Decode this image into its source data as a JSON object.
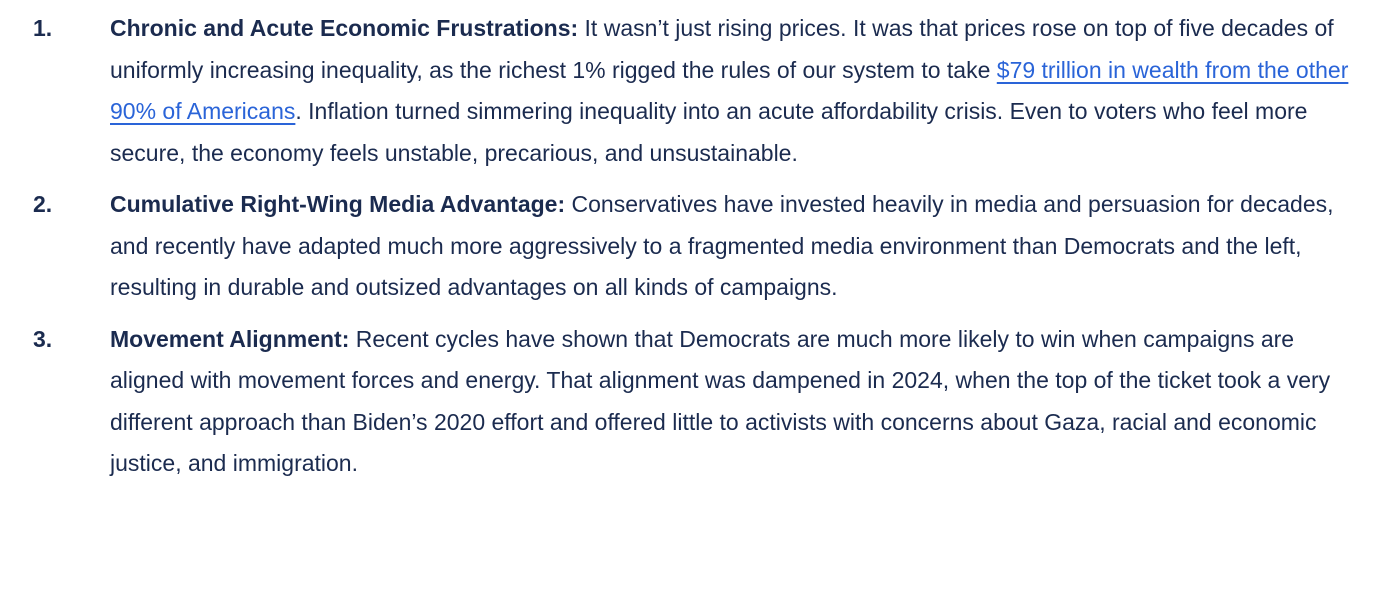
{
  "page": {
    "background_color": "#ffffff",
    "text_color": "#1b2b4f",
    "link_color": "#2a64d8"
  },
  "list": {
    "items": [
      {
        "number": "1.",
        "heading": "Chronic and Acute Economic Frustrations:",
        "body_before_link": " It wasn’t just rising prices. It was that prices rose on top of five decades of uniformly increasing inequality, as the richest 1% rigged the rules of our system to take ",
        "link_text": "$79 trillion in wealth from the other 90% of Americans",
        "body_after_link": ". Inflation turned simmering inequality into an acute affordability crisis. Even to voters who feel more secure, the economy feels unstable, precarious, and unsustainable."
      },
      {
        "number": "2.",
        "heading": "Cumulative Right-Wing Media Advantage:",
        "body": " Conservatives have invested heavily in media and persuasion for decades, and recently have adapted much more aggressively to a fragmented media environment than Democrats and the left, resulting in durable and outsized advantages on all kinds of campaigns."
      },
      {
        "number": "3.",
        "heading": "Movement Alignment:",
        "body": " Recent cycles have shown that Democrats are much more likely to win when campaigns are aligned with movement forces and energy. That alignment was dampened in 2024, when the top of the ticket took a very different approach than Biden’s 2020 effort and offered little to activists with concerns about Gaza, racial and economic justice, and immigration."
      }
    ]
  }
}
